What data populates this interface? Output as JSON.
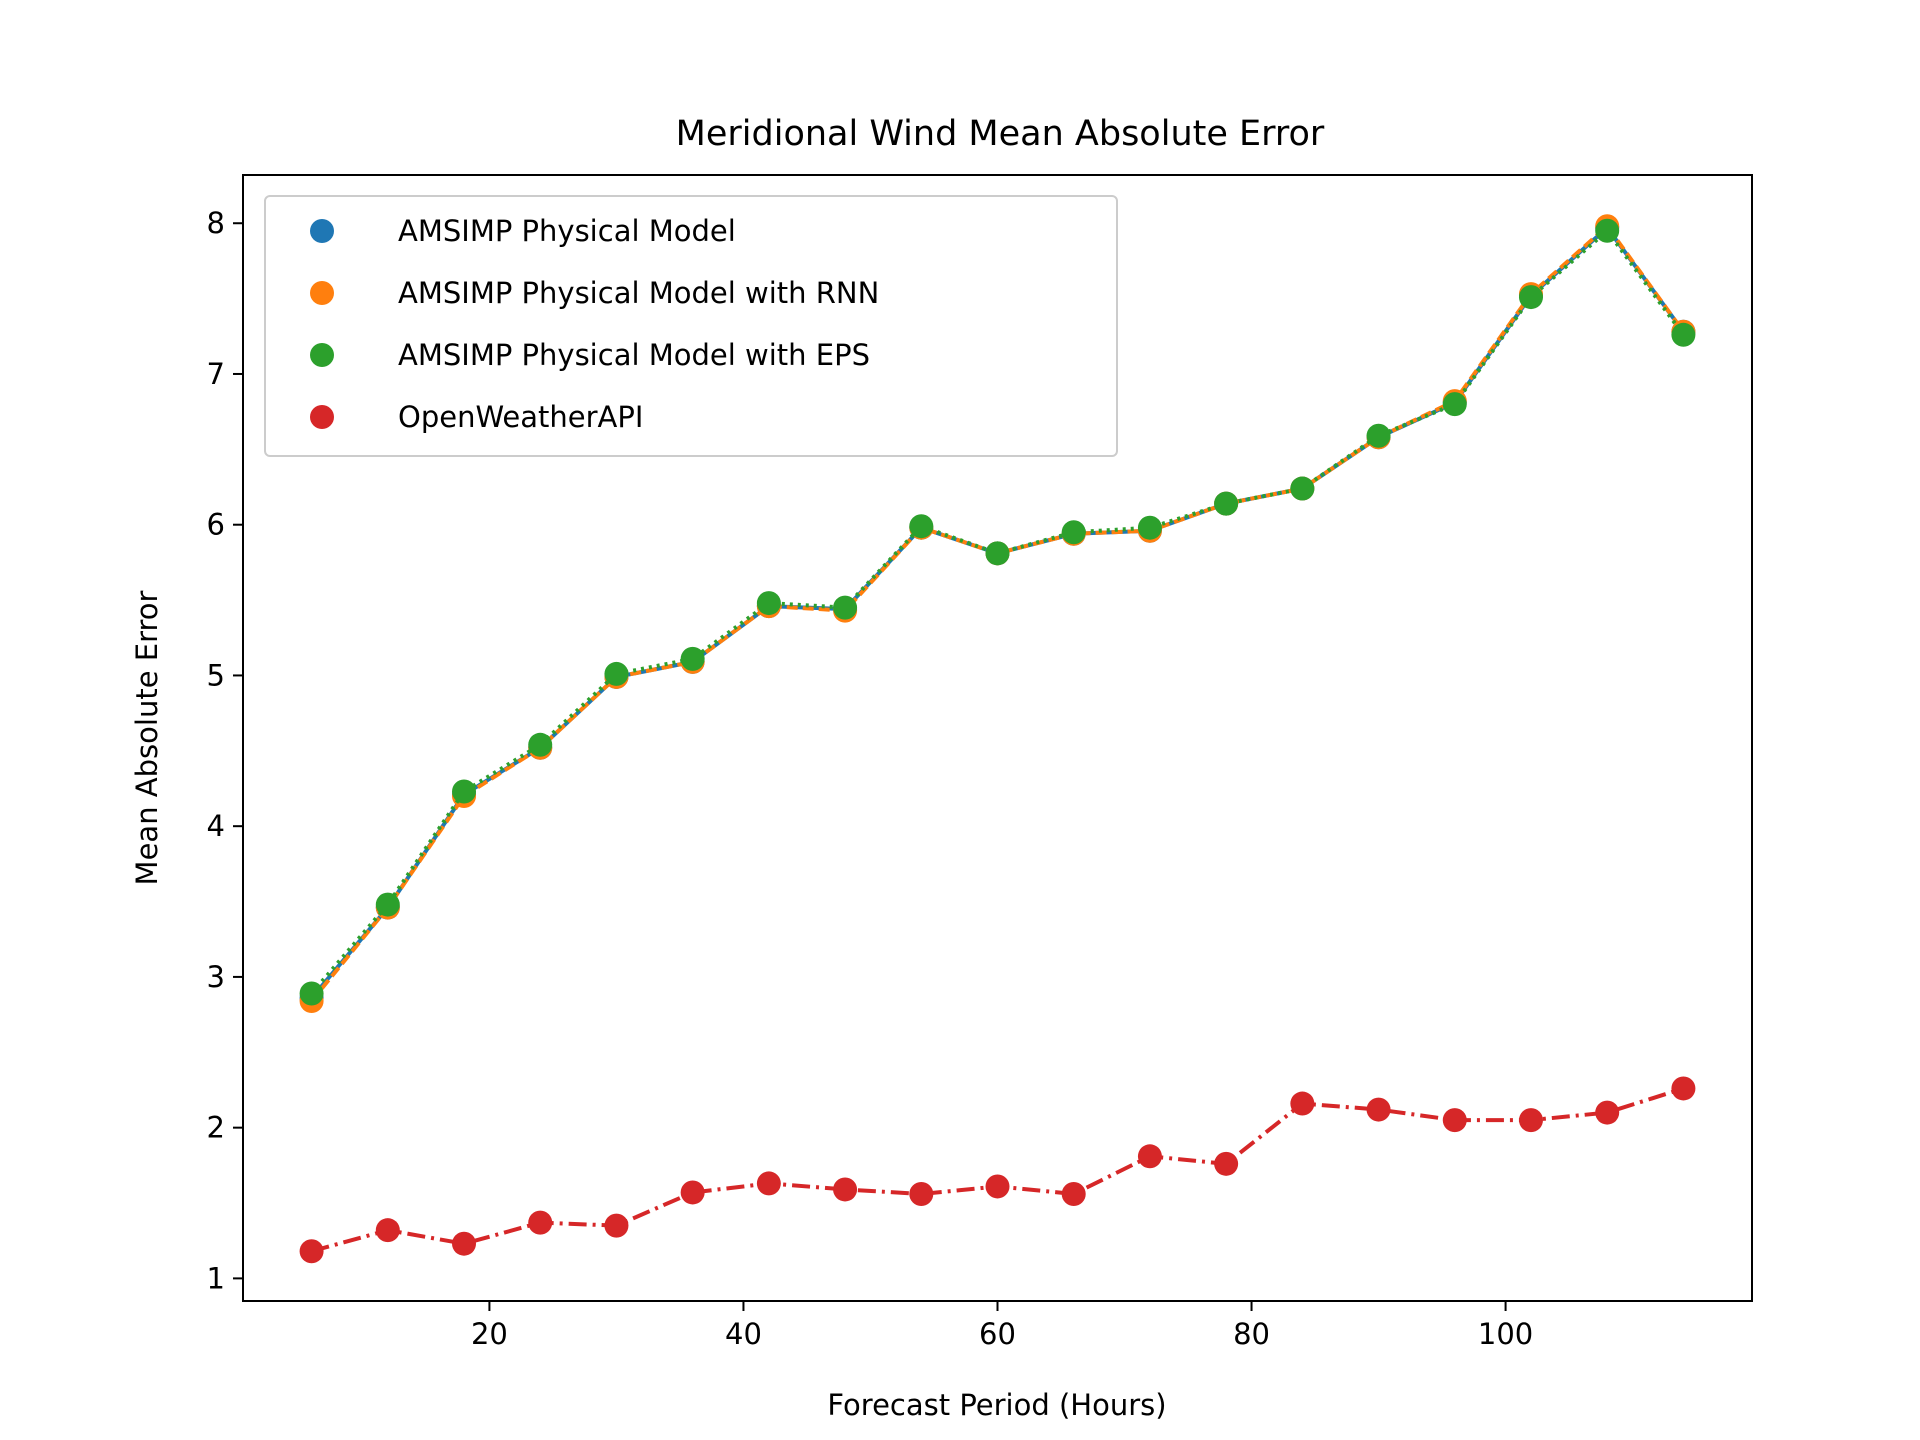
{
  "chart_data": {
    "type": "line",
    "title": "Meridional Wind Mean Absolute Error",
    "xlabel": "Forecast Period (Hours)",
    "ylabel": "Mean Absolute Error",
    "xlim": [
      0.6,
      119.4
    ],
    "ylim": [
      0.85,
      8.32
    ],
    "xticks": [
      20,
      40,
      60,
      80,
      100
    ],
    "yticks": [
      1,
      2,
      3,
      4,
      5,
      6,
      7,
      8
    ],
    "grid": false,
    "legend_position": "top-left",
    "x": [
      6,
      12,
      18,
      24,
      30,
      36,
      42,
      48,
      54,
      60,
      66,
      72,
      78,
      84,
      90,
      96,
      102,
      108,
      114
    ],
    "series": [
      {
        "name": "AMSIMP Physical Model",
        "color": "#1f77b4",
        "line_style": "solid",
        "values": [
          2.86,
          3.46,
          4.21,
          4.52,
          4.99,
          5.09,
          5.46,
          5.44,
          5.98,
          5.81,
          5.94,
          5.96,
          6.14,
          6.24,
          6.58,
          6.81,
          7.52,
          7.97,
          7.28
        ]
      },
      {
        "name": "AMSIMP Physical Model with RNN",
        "color": "#ff7f0e",
        "line_style": "dashed",
        "values": [
          2.84,
          3.46,
          4.2,
          4.52,
          4.99,
          5.09,
          5.46,
          5.43,
          5.98,
          5.81,
          5.94,
          5.96,
          6.14,
          6.24,
          6.58,
          6.82,
          7.53,
          7.98,
          7.28
        ]
      },
      {
        "name": "AMSIMP Physical Model with EPS",
        "color": "#2ca02c",
        "line_style": "dotted",
        "values": [
          2.89,
          3.48,
          4.23,
          4.54,
          5.01,
          5.11,
          5.48,
          5.45,
          5.99,
          5.81,
          5.95,
          5.98,
          6.14,
          6.24,
          6.59,
          6.8,
          7.51,
          7.95,
          7.26
        ]
      },
      {
        "name": "OpenWeatherAPI",
        "color": "#d62728",
        "line_style": "dashdot",
        "values": [
          1.18,
          1.32,
          1.23,
          1.37,
          1.35,
          1.57,
          1.63,
          1.59,
          1.56,
          1.61,
          1.56,
          1.81,
          1.76,
          2.16,
          2.12,
          2.05,
          2.05,
          2.1,
          2.26
        ]
      }
    ]
  }
}
